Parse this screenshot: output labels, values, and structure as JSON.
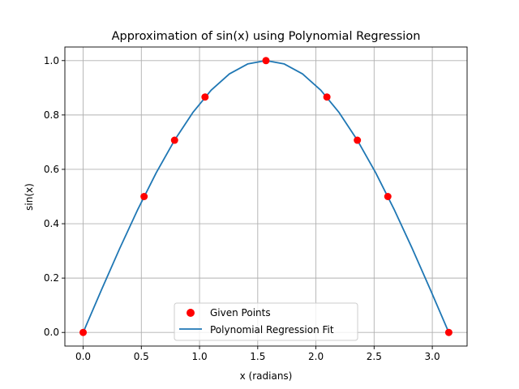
{
  "chart_data": {
    "type": "scatter+line",
    "title": "Approximation of sin(x) using Polynomial Regression",
    "xlabel": "x (radians)",
    "ylabel": "sin(x)",
    "xlim": [
      -0.157,
      3.299
    ],
    "ylim": [
      -0.05,
      1.05
    ],
    "xticks": [
      0.0,
      0.5,
      1.0,
      1.5,
      2.0,
      2.5,
      3.0
    ],
    "xtick_labels": [
      "0.0",
      "0.5",
      "1.0",
      "1.5",
      "2.0",
      "2.5",
      "3.0"
    ],
    "yticks": [
      0.0,
      0.2,
      0.4,
      0.6,
      0.8,
      1.0
    ],
    "ytick_labels": [
      "0.0",
      "0.2",
      "0.4",
      "0.6",
      "0.8",
      "1.0"
    ],
    "grid": true,
    "legend_position": "lower-center",
    "series": [
      {
        "name": "Given Points",
        "kind": "scatter",
        "color": "#ff0000",
        "x": [
          0.0,
          0.5236,
          0.7854,
          1.0472,
          1.5708,
          2.0944,
          2.3562,
          2.618,
          3.1416
        ],
        "y": [
          0.0,
          0.5,
          0.7071,
          0.866,
          1.0,
          0.866,
          0.7071,
          0.5,
          0.0
        ]
      },
      {
        "name": "Polynomial Regression Fit",
        "kind": "line",
        "color": "#1f77b4",
        "x": [
          0.0,
          0.1571,
          0.3142,
          0.4712,
          0.6283,
          0.7854,
          0.9425,
          1.0996,
          1.2566,
          1.4137,
          1.5708,
          1.7279,
          1.885,
          2.042,
          2.1991,
          2.3562,
          2.5133,
          2.6704,
          2.8274,
          2.9845,
          3.1416
        ],
        "y": [
          0.0,
          0.1564,
          0.309,
          0.454,
          0.5878,
          0.7071,
          0.809,
          0.891,
          0.9511,
          0.9877,
          1.0,
          0.9877,
          0.9511,
          0.891,
          0.809,
          0.7071,
          0.5878,
          0.454,
          0.309,
          0.1564,
          0.0
        ]
      }
    ]
  }
}
